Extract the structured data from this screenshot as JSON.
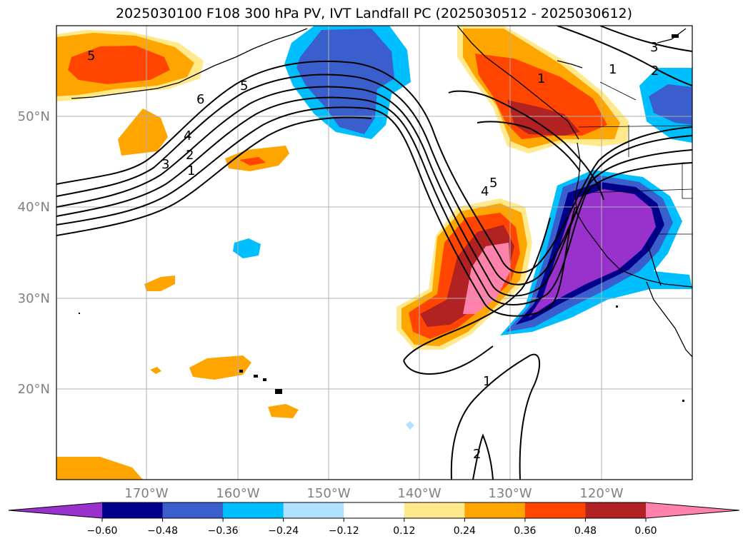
{
  "title": "2025030100 F108 300 hPa PV, IVT Landfall PC (2025030512 - 2025030612)",
  "lat_labels": [
    "50°N",
    "40°N",
    "30°N",
    "20°N"
  ],
  "lon_labels": [
    "170°W",
    "160°W",
    "150°W",
    "140°W",
    "130°W",
    "120°W"
  ],
  "colorbar": {
    "ticks": [
      "−0.60",
      "−0.48",
      "−0.36",
      "−0.24",
      "−0.12",
      "0.12",
      "0.24",
      "0.36",
      "0.48",
      "0.60"
    ],
    "colors": [
      "#9932cc",
      "#00008b",
      "#3a5fcd",
      "#00bfff",
      "#b0e2ff",
      "#ffffff",
      "#ffe98a",
      "#ffa500",
      "#ff4500",
      "#b22222",
      "#ff82ab"
    ]
  },
  "contour_labels": [
    "5",
    "6",
    "5",
    "4",
    "3",
    "2",
    "1",
    "1",
    "1",
    "2",
    "3",
    "5",
    "4",
    "1",
    "2"
  ]
}
